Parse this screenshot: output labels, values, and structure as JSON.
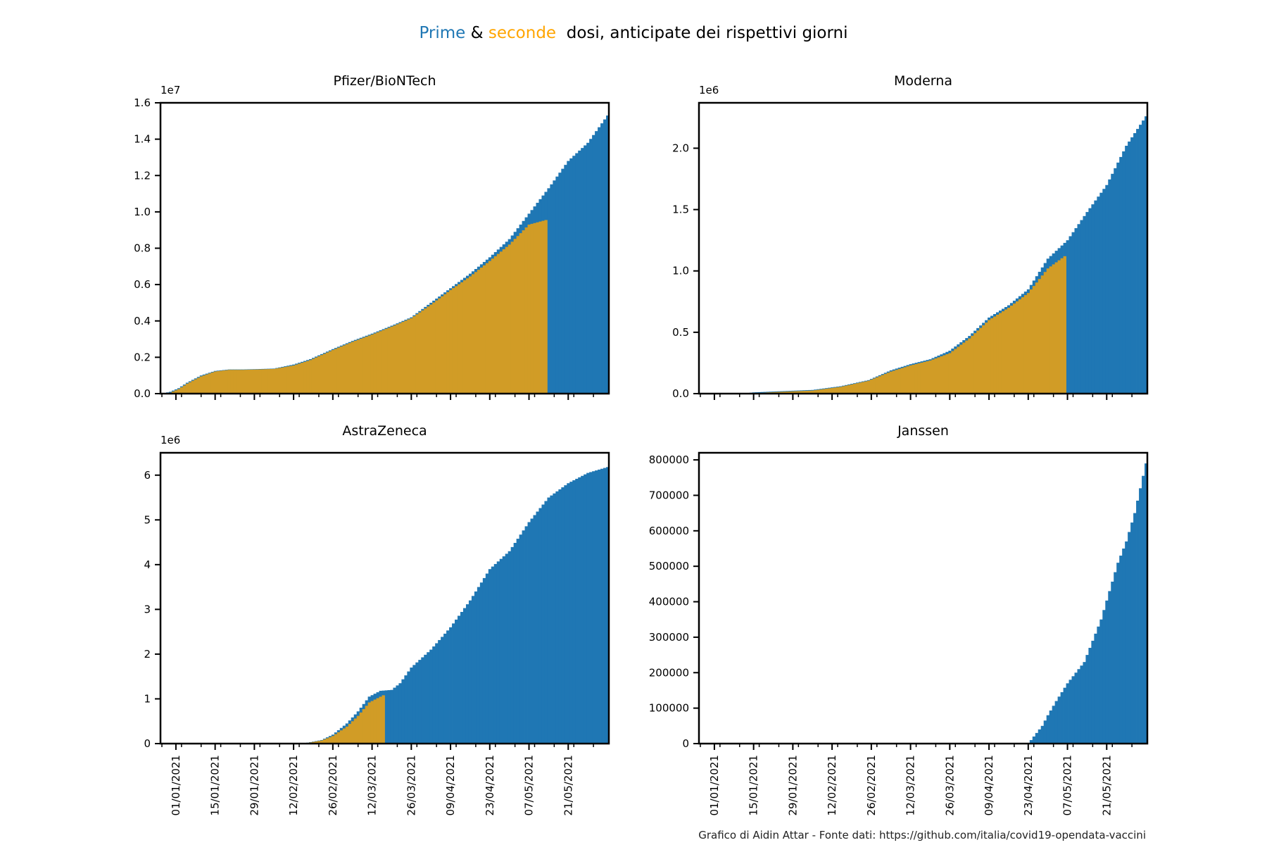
{
  "figure": {
    "title_parts": [
      {
        "text": "Prime",
        "color": "#1f77b4"
      },
      {
        "text": " & ",
        "color": "#000000"
      },
      {
        "text": "seconde",
        "color": "#ffa500"
      },
      {
        "text": "  dosi, anticipate dei rispettivi giorni",
        "color": "#000000"
      }
    ],
    "credit": "Grafico di Aidin Attar - Fonte dati: https://github.com/italia/covid19-opendata-vaccini"
  },
  "colors": {
    "first_dose": "#1f77b4",
    "second_dose": "#d19c26",
    "axis": "#000000"
  },
  "chart_data": [
    {
      "type": "bar",
      "title": "Pfizer/BioNTech",
      "offset_text": "1e7",
      "x_range": [
        "2020-12-27",
        "2021-06-04"
      ],
      "ylim": [
        0,
        1.6
      ],
      "yticks": [
        "0.0",
        "0.2",
        "0.4",
        "0.6",
        "0.8",
        "1.0",
        "1.2",
        "1.4",
        "1.6"
      ],
      "xticks": [
        "01/01/2021",
        "15/01/2021",
        "29/01/2021",
        "12/02/2021",
        "26/02/2021",
        "12/03/2021",
        "26/03/2021",
        "09/04/2021",
        "23/04/2021",
        "07/05/2021",
        "21/05/2021"
      ],
      "show_xtick_labels": false,
      "grid": false,
      "series": [
        {
          "name": "Prime",
          "color": "#1f77b4",
          "points": [
            [
              "2020-12-27",
              0
            ],
            [
              "2020-12-30",
              0.01
            ],
            [
              "2021-01-02",
              0.03
            ],
            [
              "2021-01-05",
              0.06
            ],
            [
              "2021-01-10",
              0.1
            ],
            [
              "2021-01-15",
              0.125
            ],
            [
              "2021-01-20",
              0.133
            ],
            [
              "2021-01-25",
              0.133
            ],
            [
              "2021-01-30",
              0.135
            ],
            [
              "2021-02-05",
              0.138
            ],
            [
              "2021-02-12",
              0.16
            ],
            [
              "2021-02-18",
              0.19
            ],
            [
              "2021-02-26",
              0.245
            ],
            [
              "2021-03-05",
              0.29
            ],
            [
              "2021-03-12",
              0.33
            ],
            [
              "2021-03-20",
              0.38
            ],
            [
              "2021-03-26",
              0.42
            ],
            [
              "2021-04-02",
              0.5
            ],
            [
              "2021-04-09",
              0.58
            ],
            [
              "2021-04-16",
              0.66
            ],
            [
              "2021-04-23",
              0.75
            ],
            [
              "2021-04-30",
              0.85
            ],
            [
              "2021-05-07",
              0.99
            ],
            [
              "2021-05-14",
              1.13
            ],
            [
              "2021-05-21",
              1.28
            ],
            [
              "2021-05-28",
              1.38
            ],
            [
              "2021-06-04",
              1.53
            ]
          ]
        },
        {
          "name": "seconde",
          "color": "#d19c26",
          "points": [
            [
              "2020-12-27",
              0
            ],
            [
              "2020-12-30",
              0.005
            ],
            [
              "2021-01-02",
              0.025
            ],
            [
              "2021-01-05",
              0.055
            ],
            [
              "2021-01-10",
              0.095
            ],
            [
              "2021-01-15",
              0.122
            ],
            [
              "2021-01-20",
              0.131
            ],
            [
              "2021-01-25",
              0.131
            ],
            [
              "2021-01-30",
              0.133
            ],
            [
              "2021-02-05",
              0.136
            ],
            [
              "2021-02-12",
              0.155
            ],
            [
              "2021-02-18",
              0.185
            ],
            [
              "2021-02-26",
              0.24
            ],
            [
              "2021-03-05",
              0.285
            ],
            [
              "2021-03-12",
              0.325
            ],
            [
              "2021-03-20",
              0.375
            ],
            [
              "2021-03-26",
              0.415
            ],
            [
              "2021-04-02",
              0.49
            ],
            [
              "2021-04-09",
              0.57
            ],
            [
              "2021-04-16",
              0.645
            ],
            [
              "2021-04-23",
              0.73
            ],
            [
              "2021-04-30",
              0.82
            ],
            [
              "2021-05-07",
              0.93
            ],
            [
              "2021-05-13",
              0.955
            ]
          ]
        }
      ]
    },
    {
      "type": "bar",
      "title": "Moderna",
      "offset_text": "1e6",
      "x_range": [
        "2020-12-27",
        "2021-06-04"
      ],
      "ylim": [
        0,
        2.37
      ],
      "yticks": [
        "0.0",
        "0.5",
        "1.0",
        "1.5",
        "2.0"
      ],
      "xticks": [
        "01/01/2021",
        "15/01/2021",
        "29/01/2021",
        "12/02/2021",
        "26/02/2021",
        "12/03/2021",
        "26/03/2021",
        "09/04/2021",
        "23/04/2021",
        "07/05/2021",
        "21/05/2021"
      ],
      "show_xtick_labels": false,
      "grid": false,
      "series": [
        {
          "name": "Prime",
          "color": "#1f77b4",
          "points": [
            [
              "2021-01-11",
              0
            ],
            [
              "2021-01-15",
              0.01
            ],
            [
              "2021-01-25",
              0.02
            ],
            [
              "2021-02-05",
              0.03
            ],
            [
              "2021-02-15",
              0.06
            ],
            [
              "2021-02-25",
              0.11
            ],
            [
              "2021-03-05",
              0.19
            ],
            [
              "2021-03-12",
              0.24
            ],
            [
              "2021-03-19",
              0.28
            ],
            [
              "2021-03-26",
              0.35
            ],
            [
              "2021-04-02",
              0.47
            ],
            [
              "2021-04-09",
              0.62
            ],
            [
              "2021-04-16",
              0.72
            ],
            [
              "2021-04-23",
              0.85
            ],
            [
              "2021-04-30",
              1.1
            ],
            [
              "2021-05-07",
              1.25
            ],
            [
              "2021-05-14",
              1.48
            ],
            [
              "2021-05-21",
              1.7
            ],
            [
              "2021-05-28",
              2.02
            ],
            [
              "2021-06-04",
              2.26
            ]
          ]
        },
        {
          "name": "seconde",
          "color": "#d19c26",
          "points": [
            [
              "2021-01-15",
              0
            ],
            [
              "2021-01-20",
              0.01
            ],
            [
              "2021-01-25",
              0.015
            ],
            [
              "2021-02-05",
              0.025
            ],
            [
              "2021-02-15",
              0.055
            ],
            [
              "2021-02-25",
              0.105
            ],
            [
              "2021-03-05",
              0.18
            ],
            [
              "2021-03-12",
              0.23
            ],
            [
              "2021-03-19",
              0.27
            ],
            [
              "2021-03-26",
              0.33
            ],
            [
              "2021-04-02",
              0.45
            ],
            [
              "2021-04-09",
              0.6
            ],
            [
              "2021-04-16",
              0.7
            ],
            [
              "2021-04-23",
              0.82
            ],
            [
              "2021-04-30",
              1.02
            ],
            [
              "2021-05-06",
              1.12
            ]
          ]
        }
      ]
    },
    {
      "type": "bar",
      "title": "AstraZeneca",
      "offset_text": "1e6",
      "x_range": [
        "2020-12-27",
        "2021-06-04"
      ],
      "ylim": [
        0,
        6.5
      ],
      "yticks": [
        "0",
        "1",
        "2",
        "3",
        "4",
        "5",
        "6"
      ],
      "xticks": [
        "01/01/2021",
        "15/01/2021",
        "29/01/2021",
        "12/02/2021",
        "26/02/2021",
        "12/03/2021",
        "26/03/2021",
        "09/04/2021",
        "23/04/2021",
        "07/05/2021",
        "21/05/2021"
      ],
      "show_xtick_labels": true,
      "grid": false,
      "series": [
        {
          "name": "Prime",
          "color": "#1f77b4",
          "points": [
            [
              "2021-02-13",
              0
            ],
            [
              "2021-02-17",
              0.02
            ],
            [
              "2021-02-22",
              0.08
            ],
            [
              "2021-02-26",
              0.2
            ],
            [
              "2021-03-03",
              0.45
            ],
            [
              "2021-03-07",
              0.72
            ],
            [
              "2021-03-11",
              1.05
            ],
            [
              "2021-03-15",
              1.18
            ],
            [
              "2021-03-19",
              1.2
            ],
            [
              "2021-03-22",
              1.35
            ],
            [
              "2021-03-26",
              1.7
            ],
            [
              "2021-04-02",
              2.1
            ],
            [
              "2021-04-09",
              2.6
            ],
            [
              "2021-04-16",
              3.2
            ],
            [
              "2021-04-23",
              3.9
            ],
            [
              "2021-04-30",
              4.3
            ],
            [
              "2021-05-07",
              4.95
            ],
            [
              "2021-05-14",
              5.5
            ],
            [
              "2021-05-21",
              5.82
            ],
            [
              "2021-05-28",
              6.05
            ],
            [
              "2021-06-04",
              6.18
            ]
          ]
        },
        {
          "name": "seconde",
          "color": "#d19c26",
          "points": [
            [
              "2021-02-13",
              0
            ],
            [
              "2021-02-17",
              0.015
            ],
            [
              "2021-02-22",
              0.07
            ],
            [
              "2021-02-26",
              0.17
            ],
            [
              "2021-03-03",
              0.38
            ],
            [
              "2021-03-07",
              0.62
            ],
            [
              "2021-03-11",
              0.92
            ],
            [
              "2021-03-16",
              1.08
            ]
          ]
        }
      ]
    },
    {
      "type": "bar",
      "title": "Janssen",
      "offset_text": "",
      "x_range": [
        "2020-12-27",
        "2021-06-04"
      ],
      "ylim": [
        0,
        820000
      ],
      "yticks": [
        "0",
        "100000",
        "200000",
        "300000",
        "400000",
        "500000",
        "600000",
        "700000",
        "800000"
      ],
      "xticks": [
        "01/01/2021",
        "15/01/2021",
        "29/01/2021",
        "12/02/2021",
        "26/02/2021",
        "12/03/2021",
        "26/03/2021",
        "09/04/2021",
        "23/04/2021",
        "07/05/2021",
        "21/05/2021"
      ],
      "show_xtick_labels": true,
      "grid": false,
      "series": [
        {
          "name": "Prime",
          "color": "#1f77b4",
          "points": [
            [
              "2021-04-23",
              0
            ],
            [
              "2021-04-24",
              10000
            ],
            [
              "2021-04-26",
              30000
            ],
            [
              "2021-04-28",
              50000
            ],
            [
              "2021-04-30",
              80000
            ],
            [
              "2021-05-03",
              120000
            ],
            [
              "2021-05-07",
              170000
            ],
            [
              "2021-05-10",
              200000
            ],
            [
              "2021-05-13",
              230000
            ],
            [
              "2021-05-16",
              290000
            ],
            [
              "2021-05-19",
              350000
            ],
            [
              "2021-05-22",
              430000
            ],
            [
              "2021-05-25",
              510000
            ],
            [
              "2021-05-28",
              570000
            ],
            [
              "2021-05-31",
              650000
            ],
            [
              "2021-06-02",
              720000
            ],
            [
              "2021-06-04",
              790000
            ]
          ]
        }
      ]
    }
  ]
}
